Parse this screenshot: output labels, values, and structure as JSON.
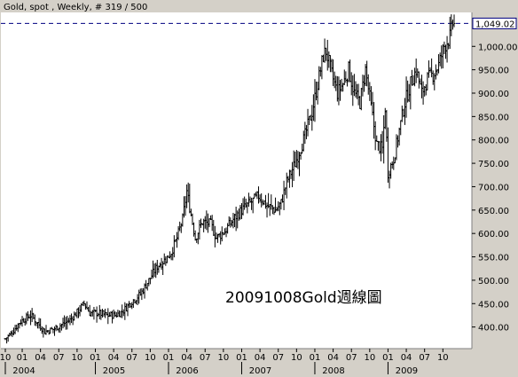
{
  "chart_data": {
    "type": "ohlc-bars",
    "title": "Gold, spot , Weekly, # 319 / 500",
    "annotation": "20091008Gold週線圖",
    "last_price_label": "1,049.02",
    "y_ticks": [
      400,
      450,
      500,
      550,
      600,
      650,
      700,
      750,
      800,
      850,
      900,
      950,
      1000
    ],
    "y_tick_labels": [
      "400.00",
      "450.00",
      "500.00",
      "550.00",
      "600.00",
      "650.00",
      "700.00",
      "750.00",
      "800.00",
      "850.00",
      "900.00",
      "950.00",
      "1,000.00"
    ],
    "ylim": [
      350,
      1065
    ],
    "x_ticks": [
      {
        "week": 0,
        "label": "10"
      },
      {
        "week": 12,
        "label": "01"
      },
      {
        "week": 25,
        "label": "04"
      },
      {
        "week": 38,
        "label": "07"
      },
      {
        "week": 51,
        "label": "10"
      },
      {
        "week": 64,
        "label": "01"
      },
      {
        "week": 77,
        "label": "04"
      },
      {
        "week": 90,
        "label": "07"
      },
      {
        "week": 103,
        "label": "10"
      },
      {
        "week": 116,
        "label": "01"
      },
      {
        "week": 129,
        "label": "04"
      },
      {
        "week": 142,
        "label": "07"
      },
      {
        "week": 155,
        "label": "10"
      },
      {
        "week": 168,
        "label": "01"
      },
      {
        "week": 181,
        "label": "04"
      },
      {
        "week": 194,
        "label": "07"
      },
      {
        "week": 207,
        "label": "10"
      },
      {
        "week": 220,
        "label": "01"
      },
      {
        "week": 233,
        "label": "04"
      },
      {
        "week": 246,
        "label": "07"
      },
      {
        "week": 259,
        "label": "10"
      },
      {
        "week": 272,
        "label": "01"
      },
      {
        "week": 285,
        "label": "04"
      },
      {
        "week": 298,
        "label": "07"
      },
      {
        "week": 311,
        "label": "10"
      }
    ],
    "years": [
      {
        "week": 0,
        "label": "2004"
      },
      {
        "week": 64,
        "label": "2005"
      },
      {
        "week": 116,
        "label": "2006"
      },
      {
        "week": 168,
        "label": "2007"
      },
      {
        "week": 220,
        "label": "2008"
      },
      {
        "week": 272,
        "label": "2009"
      }
    ],
    "xlim": [
      0,
      319
    ],
    "anchors": [
      [
        0,
        375
      ],
      [
        4,
        385
      ],
      [
        10,
        410
      ],
      [
        18,
        425
      ],
      [
        24,
        405
      ],
      [
        28,
        390
      ],
      [
        34,
        395
      ],
      [
        40,
        405
      ],
      [
        46,
        415
      ],
      [
        52,
        435
      ],
      [
        56,
        450
      ],
      [
        60,
        430
      ],
      [
        66,
        430
      ],
      [
        72,
        425
      ],
      [
        78,
        425
      ],
      [
        84,
        435
      ],
      [
        90,
        455
      ],
      [
        96,
        470
      ],
      [
        102,
        500
      ],
      [
        108,
        530
      ],
      [
        114,
        545
      ],
      [
        118,
        560
      ],
      [
        122,
        590
      ],
      [
        126,
        630
      ],
      [
        129,
        690
      ],
      [
        132,
        640
      ],
      [
        135,
        590
      ],
      [
        140,
        625
      ],
      [
        146,
        620
      ],
      [
        150,
        590
      ],
      [
        156,
        605
      ],
      [
        162,
        630
      ],
      [
        168,
        650
      ],
      [
        174,
        665
      ],
      [
        180,
        680
      ],
      [
        186,
        660
      ],
      [
        192,
        650
      ],
      [
        196,
        665
      ],
      [
        200,
        710
      ],
      [
        206,
        750
      ],
      [
        212,
        800
      ],
      [
        218,
        860
      ],
      [
        222,
        920
      ],
      [
        226,
        980
      ],
      [
        228,
        990
      ],
      [
        232,
        940
      ],
      [
        236,
        900
      ],
      [
        240,
        920
      ],
      [
        244,
        950
      ],
      [
        248,
        900
      ],
      [
        252,
        880
      ],
      [
        256,
        950
      ],
      [
        260,
        870
      ],
      [
        264,
        790
      ],
      [
        268,
        780
      ],
      [
        270,
        870
      ],
      [
        272,
        730
      ],
      [
        276,
        760
      ],
      [
        280,
        820
      ],
      [
        284,
        880
      ],
      [
        288,
        920
      ],
      [
        292,
        950
      ],
      [
        296,
        900
      ],
      [
        300,
        930
      ],
      [
        304,
        940
      ],
      [
        308,
        960
      ],
      [
        312,
        1000
      ],
      [
        316,
        1020
      ],
      [
        318,
        1049
      ]
    ],
    "grid": false,
    "legend": "none"
  }
}
